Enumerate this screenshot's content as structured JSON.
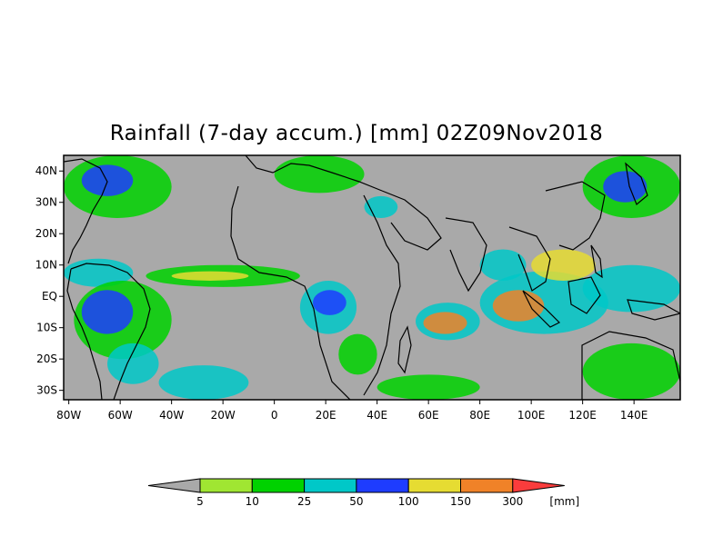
{
  "title": "Rainfall (7-day accum.) [mm] 02Z09Nov2018",
  "map": {
    "lon_range": [
      -82,
      158
    ],
    "lat_range": [
      -33,
      45
    ],
    "background_color": "#a9a9a9",
    "lat_ticks": [
      {
        "lat": 40,
        "label": "40N"
      },
      {
        "lat": 30,
        "label": "30N"
      },
      {
        "lat": 20,
        "label": "20N"
      },
      {
        "lat": 10,
        "label": "10N"
      },
      {
        "lat": 0,
        "label": "EQ"
      },
      {
        "lat": -10,
        "label": "10S"
      },
      {
        "lat": -20,
        "label": "20S"
      },
      {
        "lat": -30,
        "label": "30S"
      }
    ],
    "lon_ticks": [
      {
        "lon": -80,
        "label": "80W"
      },
      {
        "lon": -60,
        "label": "60W"
      },
      {
        "lon": -40,
        "label": "40W"
      },
      {
        "lon": -20,
        "label": "20W"
      },
      {
        "lon": 0,
        "label": "0"
      },
      {
        "lon": 20,
        "label": "20E"
      },
      {
        "lon": 40,
        "label": "40E"
      },
      {
        "lon": 60,
        "label": "60E"
      },
      {
        "lon": 80,
        "label": "80E"
      },
      {
        "lon": 100,
        "label": "100E"
      },
      {
        "lon": 120,
        "label": "120E"
      },
      {
        "lon": 140,
        "label": "140E"
      }
    ],
    "rain_regions": [
      {
        "name": "itcz-atlantic",
        "lon": [
          -50,
          10
        ],
        "lat": [
          3,
          10
        ],
        "level": 2
      },
      {
        "name": "itcz-atlantic-core",
        "lon": [
          -40,
          -10
        ],
        "lat": [
          5,
          8
        ],
        "level": 5
      },
      {
        "name": "itcz-east-pacific",
        "lon": [
          -82,
          -55
        ],
        "lat": [
          3,
          12
        ],
        "level": 3
      },
      {
        "name": "south-america-amazon",
        "lon": [
          -78,
          -40
        ],
        "lat": [
          -20,
          5
        ],
        "level": 2
      },
      {
        "name": "amazon-core",
        "lon": [
          -75,
          -55
        ],
        "lat": [
          -12,
          2
        ],
        "level": 4
      },
      {
        "name": "brazil-south",
        "lon": [
          -65,
          -45
        ],
        "lat": [
          -28,
          -15
        ],
        "level": 3
      },
      {
        "name": "south-atlantic-storm",
        "lon": [
          -45,
          -10
        ],
        "lat": [
          -33,
          -22
        ],
        "level": 3
      },
      {
        "name": "congo-basin",
        "lon": [
          10,
          32
        ],
        "lat": [
          -12,
          5
        ],
        "level": 3
      },
      {
        "name": "congo-core",
        "lon": [
          15,
          28
        ],
        "lat": [
          -6,
          2
        ],
        "level": 4
      },
      {
        "name": "southeast-africa",
        "lon": [
          25,
          40
        ],
        "lat": [
          -25,
          -12
        ],
        "level": 2
      },
      {
        "name": "south-indian-ocean",
        "lon": [
          40,
          80
        ],
        "lat": [
          -33,
          -25
        ],
        "level": 2
      },
      {
        "name": "indian-ocean-convergence",
        "lon": [
          55,
          80
        ],
        "lat": [
          -14,
          -2
        ],
        "level": 3
      },
      {
        "name": "indian-ocean-heavy",
        "lon": [
          58,
          75
        ],
        "lat": [
          -12,
          -5
        ],
        "level": 6
      },
      {
        "name": "bay-of-bengal",
        "lon": [
          80,
          98
        ],
        "lat": [
          5,
          15
        ],
        "level": 3
      },
      {
        "name": "maritime-continent",
        "lon": [
          80,
          130
        ],
        "lat": [
          -12,
          8
        ],
        "level": 3
      },
      {
        "name": "sumatra-heavy",
        "lon": [
          85,
          105
        ],
        "lat": [
          -8,
          2
        ],
        "level": 6
      },
      {
        "name": "south-china-sea",
        "lon": [
          100,
          125
        ],
        "lat": [
          5,
          15
        ],
        "level": 5
      },
      {
        "name": "west-pacific",
        "lon": [
          120,
          158
        ],
        "lat": [
          -5,
          10
        ],
        "level": 3
      },
      {
        "name": "north-pacific",
        "lon": [
          120,
          158
        ],
        "lat": [
          25,
          45
        ],
        "level": 2
      },
      {
        "name": "japan-heavy",
        "lon": [
          128,
          145
        ],
        "lat": [
          30,
          40
        ],
        "level": 4
      },
      {
        "name": "north-atlantic-storm",
        "lon": [
          -82,
          -40
        ],
        "lat": [
          25,
          45
        ],
        "level": 2
      },
      {
        "name": "gulf-stream",
        "lon": [
          -75,
          -55
        ],
        "lat": [
          32,
          42
        ],
        "level": 4
      },
      {
        "name": "mediterranean",
        "lon": [
          0,
          35
        ],
        "lat": [
          33,
          45
        ],
        "level": 2
      },
      {
        "name": "red-sea",
        "lon": [
          35,
          48
        ],
        "lat": [
          25,
          32
        ],
        "level": 3
      },
      {
        "name": "australia-north",
        "lon": [
          120,
          158
        ],
        "lat": [
          -33,
          -15
        ],
        "level": 2
      }
    ]
  },
  "legend": {
    "colors": [
      "#a9a9a9",
      "#a0e632",
      "#00d200",
      "#00c8c8",
      "#1e3cff",
      "#e6dc32",
      "#f08228",
      "#fa3c3c"
    ],
    "labels": [
      "5",
      "10",
      "25",
      "50",
      "100",
      "150",
      "300"
    ],
    "unit": "[mm]"
  }
}
